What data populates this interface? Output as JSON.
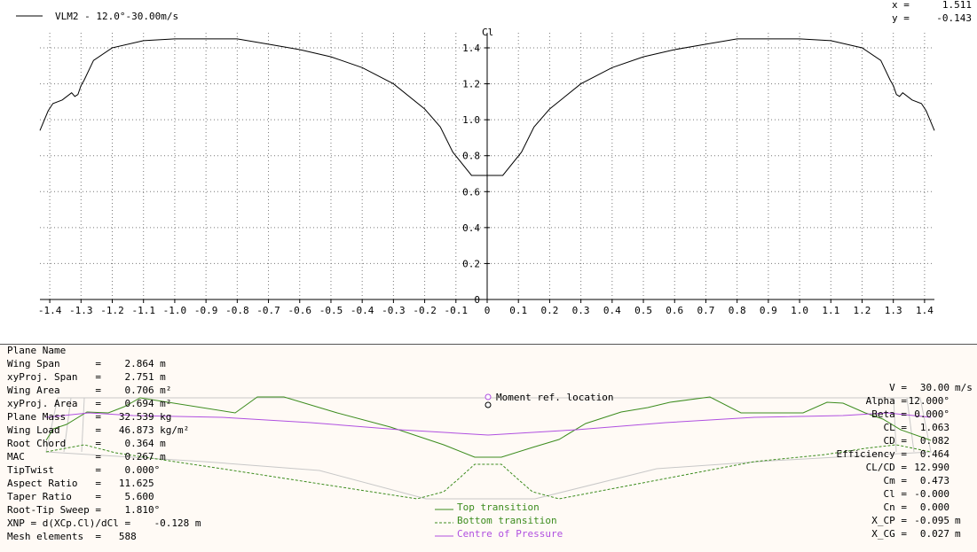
{
  "chart_data": {
    "type": "line",
    "series": [
      {
        "name": "VLM2 -   12.0°-30.00m/s",
        "x": [
          -1.4315,
          -1.405,
          -1.39,
          -1.36,
          -1.33,
          -1.32,
          -1.31,
          -1.3,
          -1.29,
          -1.26,
          -1.2,
          -1.1,
          -1.0,
          -0.9,
          -0.8,
          -0.7,
          -0.6,
          -0.5,
          -0.4,
          -0.3,
          -0.2,
          -0.15,
          -0.11,
          -0.05,
          0,
          0.05,
          0.11,
          0.15,
          0.2,
          0.3,
          0.4,
          0.5,
          0.6,
          0.7,
          0.8,
          0.9,
          1.0,
          1.1,
          1.2,
          1.26,
          1.29,
          1.3,
          1.31,
          1.32,
          1.33,
          1.36,
          1.39,
          1.405,
          1.4315
        ],
        "y": [
          0.94,
          1.05,
          1.09,
          1.11,
          1.15,
          1.13,
          1.14,
          1.19,
          1.22,
          1.33,
          1.4,
          1.44,
          1.45,
          1.45,
          1.45,
          1.42,
          1.39,
          1.35,
          1.29,
          1.2,
          1.06,
          0.96,
          0.82,
          0.69,
          0.69,
          0.69,
          0.82,
          0.96,
          1.06,
          1.2,
          1.29,
          1.35,
          1.39,
          1.42,
          1.45,
          1.45,
          1.45,
          1.44,
          1.4,
          1.33,
          1.22,
          1.19,
          1.14,
          1.13,
          1.15,
          1.11,
          1.09,
          1.05,
          0.94
        ],
        "color": "#000000"
      }
    ],
    "ylabel": "Cl",
    "xlim": [
      -1.4315,
      1.4315
    ],
    "ylim": [
      0,
      1.45
    ],
    "xticks": [
      -1.4,
      -1.3,
      -1.2,
      -1.1,
      -1.0,
      -0.9,
      -0.8,
      -0.7,
      -0.6,
      -0.5,
      -0.4,
      -0.3,
      -0.2,
      -0.1,
      0,
      0.1,
      0.2,
      0.3,
      0.4,
      0.5,
      0.6,
      0.7,
      0.8,
      0.9,
      1.0,
      1.1,
      1.2,
      1.3,
      1.4
    ],
    "xtick_labels": [
      "-1.4",
      "-1.3",
      "-1.2",
      "-1.1",
      "-1.0",
      "-0.9",
      "-0.8",
      "-0.7",
      "-0.6",
      "-0.5",
      "-0.4",
      "-0.3",
      "-0.2",
      "-0.1",
      "0",
      "0.1",
      "0.2",
      "0.3",
      "0.4",
      "0.5",
      "0.6",
      "0.7",
      "0.8",
      "0.9",
      "1.0",
      "1.1",
      "1.2",
      "1.3",
      "1.4"
    ],
    "yticks": [
      0,
      0.2,
      0.4,
      0.6,
      0.8,
      1.0,
      1.2,
      1.4
    ],
    "ytick_labels": [
      "0",
      "0.2",
      "0.4",
      "0.6",
      "0.8",
      "1.0",
      "1.2",
      "1.4"
    ],
    "grid": true,
    "legend": "top-left"
  },
  "cursor": {
    "x_label": "x =",
    "x_value": "1.511",
    "y_label": "y =",
    "y_value": "-0.143"
  },
  "plane_info": [
    "Plane Name",
    "Wing Span      =    2.864 m",
    "xyProj. Span   =    2.751 m",
    "Wing Area      =    0.706 m²",
    "xyProj. Area   =    0.694 m²",
    "Plane Mass     =   32.539 kg",
    "Wing Load      =   46.873 kg/m²",
    "Root Chord     =    0.364 m",
    "MAC            =    0.267 m",
    "TipTwist       =    0.000°",
    "Aspect Ratio   =   11.625",
    "Taper Ratio    =    5.600",
    "Root-Tip Sweep =    1.810°",
    "XNP = d(XCp.Cl)/dCl =    -0.128 m",
    "Mesh elements  =   588"
  ],
  "results": [
    {
      "label": "V =",
      "value": "30.00 m/s"
    },
    {
      "label": "Alpha =",
      "value": "12.000°"
    },
    {
      "label": "Beta =",
      "value": "0.000°"
    },
    {
      "label": "CL =",
      "value": "1.063"
    },
    {
      "label": "CD =",
      "value": "0.082"
    },
    {
      "label": "Efficiency =",
      "value": "0.464"
    },
    {
      "label": "CL/CD =",
      "value": "12.990"
    },
    {
      "label": "Cm =",
      "value": "0.473"
    },
    {
      "label": "Cl =",
      "value": "-0.000"
    },
    {
      "label": "Cn =",
      "value": "0.000"
    },
    {
      "label": "X_CP =",
      "value": "-0.095 m"
    },
    {
      "label": "X_CG =",
      "value": "0.027 m"
    }
  ],
  "moment_ref_label": "Moment ref. location",
  "wing_legend": [
    {
      "label": "Top transition",
      "color": "#3c8c1e",
      "dash": "solid"
    },
    {
      "label": "Bottom transition",
      "color": "#3c8c1e",
      "dash": "dashed"
    },
    {
      "label": "Centre of Pressure",
      "color": "#b050e0",
      "dash": "solid"
    }
  ],
  "colors": {
    "transition": "#3c8c1e",
    "pressure": "#b050e0",
    "outline": "#c8c8c8",
    "grid": "#777777"
  }
}
